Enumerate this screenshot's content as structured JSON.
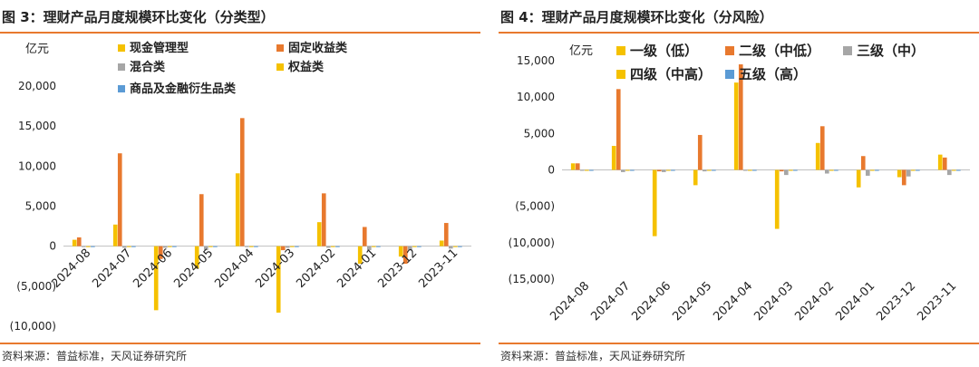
{
  "chart_data": [
    {
      "type": "bar",
      "title": "图 3：理财产品月度规模环比变化（分类型）",
      "source": "资料来源：普益标准，天风证券研究所",
      "ylabel": "亿元",
      "ylim": [
        -10000,
        20000
      ],
      "yticks": [
        "(10,000)",
        "(5,000)",
        "0",
        "5,000",
        "10,000",
        "15,000",
        "20,000"
      ],
      "categories": [
        "2024-08",
        "2024-07",
        "2024-06",
        "2024-05",
        "2024-04",
        "2024-03",
        "2024-02",
        "2024-01",
        "2023-12",
        "2023-11"
      ],
      "series": [
        {
          "name": "现金管理型",
          "color": "#f5c100",
          "values": [
            800,
            2700,
            -8000,
            -2800,
            9100,
            -8300,
            3000,
            -2200,
            -1300,
            700
          ]
        },
        {
          "name": "固定收益类",
          "color": "#e8792e",
          "values": [
            1100,
            11600,
            -1600,
            6500,
            16000,
            -500,
            6600,
            2400,
            -2200,
            2900
          ]
        },
        {
          "name": "混合类",
          "color": "#a6a6a6",
          "values": [
            -100,
            -200,
            -200,
            -500,
            -100,
            -200,
            -200,
            -500,
            -500,
            -300
          ]
        },
        {
          "name": "权益类",
          "color": "#f5c100",
          "values": [
            -30,
            -50,
            -60,
            -80,
            -40,
            -40,
            -60,
            -80,
            -100,
            -60
          ]
        },
        {
          "name": "商品及金融衍生品类",
          "color": "#5b9bd5",
          "values": [
            -10,
            -15,
            -15,
            -20,
            -10,
            -10,
            -15,
            -20,
            -25,
            -15
          ]
        }
      ]
    },
    {
      "type": "bar",
      "title": "图 4：理财产品月度规模环比变化（分风险）",
      "source": "资料来源：普益标准，天风证券研究所",
      "ylabel": "亿元",
      "ylim": [
        -15000,
        15000
      ],
      "yticks": [
        "(15,000)",
        "(10,000)",
        "(5,000)",
        "0",
        "5,000",
        "10,000",
        "15,000"
      ],
      "categories": [
        "2024-08",
        "2024-07",
        "2024-06",
        "2024-05",
        "2024-04",
        "2024-03",
        "2024-02",
        "2024-01",
        "2023-12",
        "2023-11"
      ],
      "series": [
        {
          "name": "一级（低）",
          "color": "#f5c100",
          "values": [
            900,
            3300,
            -9100,
            -2100,
            12000,
            -8100,
            3700,
            -2400,
            -1000,
            2100
          ]
        },
        {
          "name": "二级（中低）",
          "color": "#e8792e",
          "values": [
            900,
            11100,
            -200,
            4800,
            14500,
            -200,
            6000,
            1900,
            -2100,
            1700
          ]
        },
        {
          "name": "三级（中）",
          "color": "#a6a6a6",
          "values": [
            -100,
            -300,
            -300,
            -200,
            -100,
            -700,
            -500,
            -800,
            -900,
            -700
          ]
        },
        {
          "name": "四级（中高）",
          "color": "#f5c100",
          "values": [
            -20,
            -40,
            -30,
            -50,
            -30,
            -40,
            -40,
            -50,
            -60,
            -40
          ]
        },
        {
          "name": "五级（高）",
          "color": "#5b9bd5",
          "values": [
            -5,
            -10,
            -10,
            -10,
            -5,
            -5,
            -10,
            -10,
            -10,
            -10
          ]
        }
      ]
    }
  ]
}
